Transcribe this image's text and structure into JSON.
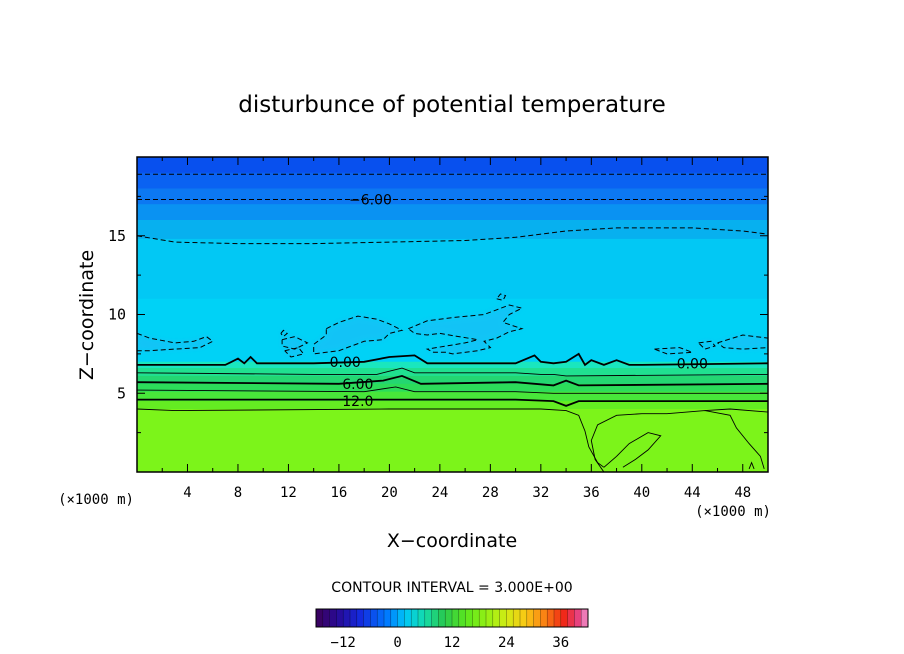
{
  "chart_data": {
    "type": "heatmap",
    "title": "disturbunce of potential temperature",
    "xlabel": "X−coordinate",
    "ylabel": "Z−coordinate",
    "x_unit_left": "(×1000 m)",
    "x_unit_right": "(×1000 m)",
    "xlim": [
      0,
      50
    ],
    "ylim": [
      0,
      20
    ],
    "x_ticks": [
      4,
      8,
      12,
      16,
      20,
      24,
      28,
      32,
      36,
      40,
      44,
      48
    ],
    "y_ticks": [
      5,
      10,
      15
    ],
    "contour_interval_text": "CONTOUR INTERVAL = 3.000E+00",
    "contour_labels": [
      {
        "text": "−6.00",
        "x": 18.5,
        "y": 17.3
      },
      {
        "text": "0.00",
        "x": 16.5,
        "y": 7.0
      },
      {
        "text": "0.00",
        "x": 44.0,
        "y": 6.9
      },
      {
        "text": "6.00",
        "x": 17.5,
        "y": 5.6
      },
      {
        "text": "12.0",
        "x": 17.5,
        "y": 4.5
      }
    ],
    "contour_levels": [
      {
        "value": -9,
        "style": "dashed",
        "points": [
          [
            0,
            18.9
          ],
          [
            50,
            18.9
          ]
        ]
      },
      {
        "value": -6,
        "style": "dashed",
        "points": [
          [
            0,
            17.3
          ],
          [
            50,
            17.3
          ]
        ]
      },
      {
        "value": -3,
        "style": "dashed",
        "points": [
          [
            0,
            15.0
          ],
          [
            3,
            14.6
          ],
          [
            8,
            14.5
          ],
          [
            14,
            14.5
          ],
          [
            20,
            14.6
          ],
          [
            26,
            14.7
          ],
          [
            30,
            14.9
          ],
          [
            34,
            15.3
          ],
          [
            38,
            15.5
          ],
          [
            44,
            15.5
          ],
          [
            48,
            15.3
          ],
          [
            50,
            15.1
          ]
        ]
      },
      {
        "value": 0,
        "style": "solid-thick",
        "points": [
          [
            0,
            6.8
          ],
          [
            7,
            6.8
          ],
          [
            7.5,
            7.0
          ],
          [
            8,
            7.2
          ],
          [
            8.5,
            6.9
          ],
          [
            9,
            7.3
          ],
          [
            9.5,
            6.9
          ],
          [
            14,
            6.9
          ],
          [
            18,
            7.0
          ],
          [
            20,
            7.3
          ],
          [
            22,
            7.4
          ],
          [
            23,
            6.9
          ],
          [
            30,
            6.9
          ],
          [
            31.5,
            7.4
          ],
          [
            32,
            7.0
          ],
          [
            33,
            6.9
          ],
          [
            34,
            7.0
          ],
          [
            35,
            7.5
          ],
          [
            35.5,
            6.8
          ],
          [
            36,
            7.1
          ],
          [
            37,
            6.8
          ],
          [
            38,
            7.1
          ],
          [
            39,
            6.8
          ],
          [
            40,
            6.8
          ],
          [
            50,
            6.9
          ]
        ]
      },
      {
        "value": 3,
        "style": "solid",
        "points": [
          [
            0,
            6.3
          ],
          [
            14,
            6.2
          ],
          [
            19,
            6.2
          ],
          [
            20,
            6.4
          ],
          [
            21,
            6.6
          ],
          [
            22,
            6.3
          ],
          [
            30,
            6.3
          ],
          [
            32,
            6.2
          ],
          [
            33,
            6.2
          ],
          [
            34,
            6.1
          ],
          [
            50,
            6.2
          ]
        ]
      },
      {
        "value": 6,
        "style": "solid-thick",
        "points": [
          [
            0,
            5.7
          ],
          [
            16,
            5.6
          ],
          [
            19.5,
            5.8
          ],
          [
            21,
            6.1
          ],
          [
            22.5,
            5.6
          ],
          [
            30,
            5.7
          ],
          [
            33,
            5.5
          ],
          [
            34,
            5.8
          ],
          [
            35,
            5.5
          ],
          [
            50,
            5.6
          ]
        ]
      },
      {
        "value": 9,
        "style": "solid",
        "points": [
          [
            0,
            5.2
          ],
          [
            18,
            5.1
          ],
          [
            20.5,
            5.4
          ],
          [
            22,
            5.1
          ],
          [
            30,
            5.1
          ],
          [
            33,
            5.0
          ],
          [
            50,
            5.0
          ]
        ]
      },
      {
        "value": 12,
        "style": "solid-thick",
        "points": [
          [
            0,
            4.6
          ],
          [
            30,
            4.6
          ],
          [
            33,
            4.5
          ],
          [
            34,
            4.2
          ],
          [
            35,
            4.5
          ],
          [
            50,
            4.5
          ]
        ]
      },
      {
        "value": 15,
        "style": "solid",
        "points": [
          [
            0,
            4.0
          ],
          [
            3,
            3.9
          ],
          [
            20,
            4.0
          ],
          [
            32,
            4.0
          ],
          [
            34,
            3.9
          ],
          [
            35,
            3.6
          ],
          [
            35.5,
            2.6
          ],
          [
            35.8,
            1.6
          ],
          [
            36.5,
            0.6
          ],
          [
            37,
            0.3
          ]
        ]
      },
      {
        "value": 15,
        "style": "solid",
        "points": [
          [
            37,
            0.0
          ],
          [
            36.3,
            0.8
          ],
          [
            36.0,
            2.0
          ],
          [
            36.5,
            3.0
          ],
          [
            38,
            3.6
          ],
          [
            40,
            3.7
          ],
          [
            42,
            3.7
          ],
          [
            45,
            3.9
          ],
          [
            47,
            3.6
          ],
          [
            47.5,
            2.8
          ],
          [
            48.5,
            1.8
          ],
          [
            49.4,
            1.0
          ],
          [
            49.7,
            0.2
          ]
        ]
      },
      {
        "value": 15,
        "style": "solid",
        "points": [
          [
            37,
            0.3
          ],
          [
            38,
            1.0
          ],
          [
            39,
            1.8
          ],
          [
            40.5,
            2.5
          ],
          [
            41.5,
            2.3
          ],
          [
            40.5,
            1.4
          ],
          [
            39.5,
            0.8
          ],
          [
            38.5,
            0.3
          ]
        ]
      },
      {
        "value": 15,
        "style": "solid",
        "points": [
          [
            45,
            3.9
          ],
          [
            47,
            4.0
          ],
          [
            50,
            3.8
          ]
        ]
      },
      {
        "value": 15,
        "style": "solid",
        "points": [
          [
            48.5,
            0.2
          ],
          [
            48.7,
            0.6
          ],
          [
            48.9,
            0.2
          ]
        ]
      }
    ],
    "cold_anomaly_contours": [
      {
        "value": -3,
        "style": "dashed",
        "points": [
          [
            0,
            8.8
          ],
          [
            1,
            8.5
          ],
          [
            3,
            8.2
          ],
          [
            4.5,
            8.3
          ],
          [
            5.5,
            8.6
          ],
          [
            6,
            8.3
          ],
          [
            5,
            7.9
          ],
          [
            3,
            7.8
          ],
          [
            1,
            7.7
          ],
          [
            0,
            7.7
          ]
        ]
      },
      {
        "value": -3,
        "style": "dashed",
        "points": [
          [
            11.5,
            8.4
          ],
          [
            12.5,
            8.6
          ],
          [
            13.5,
            8.2
          ],
          [
            12.5,
            7.8
          ],
          [
            11.5,
            8.0
          ],
          [
            11.5,
            8.4
          ]
        ]
      },
      {
        "value": -3,
        "style": "dashed",
        "points": [
          [
            11.7,
            7.7
          ],
          [
            12.8,
            7.9
          ],
          [
            13.2,
            7.5
          ],
          [
            12.2,
            7.3
          ],
          [
            11.7,
            7.7
          ]
        ]
      },
      {
        "value": -3,
        "style": "dashed",
        "points": [
          [
            11.4,
            8.8
          ],
          [
            11.6,
            9.0
          ],
          [
            11.9,
            8.8
          ],
          [
            11.6,
            8.6
          ],
          [
            11.4,
            8.8
          ]
        ]
      },
      {
        "value": -3,
        "style": "dashed",
        "points": [
          [
            15,
            9.1
          ],
          [
            16,
            9.5
          ],
          [
            17.5,
            9.9
          ],
          [
            19,
            9.7
          ],
          [
            20,
            9.4
          ],
          [
            21,
            9.0
          ],
          [
            20,
            8.8
          ],
          [
            19.5,
            8.4
          ],
          [
            18,
            8.3
          ],
          [
            17,
            8.0
          ],
          [
            16,
            7.7
          ],
          [
            15,
            7.6
          ],
          [
            14,
            7.5
          ],
          [
            14,
            8.1
          ],
          [
            15,
            8.7
          ],
          [
            15,
            9.1
          ]
        ]
      },
      {
        "value": -3,
        "style": "dashed",
        "points": [
          [
            21.5,
            9.1
          ],
          [
            23,
            9.6
          ],
          [
            25,
            9.8
          ],
          [
            27.5,
            10.0
          ],
          [
            28.5,
            10.3
          ],
          [
            29.5,
            10.6
          ],
          [
            30.5,
            10.4
          ],
          [
            29.5,
            10.0
          ],
          [
            29,
            9.5
          ],
          [
            30.5,
            9.1
          ],
          [
            29.5,
            8.9
          ],
          [
            28.5,
            8.5
          ],
          [
            27.5,
            8.3
          ],
          [
            28,
            7.9
          ],
          [
            27,
            7.7
          ],
          [
            25,
            7.5
          ],
          [
            24.5,
            7.6
          ],
          [
            23.5,
            7.6
          ],
          [
            23,
            7.8
          ],
          [
            24.5,
            8.0
          ],
          [
            26,
            8.2
          ],
          [
            27,
            8.4
          ],
          [
            25.5,
            8.6
          ],
          [
            24,
            8.8
          ],
          [
            23,
            8.7
          ],
          [
            22,
            8.8
          ],
          [
            21.5,
            9.1
          ]
        ]
      },
      {
        "value": -3,
        "style": "dashed",
        "points": [
          [
            28.5,
            11.0
          ],
          [
            29,
            10.9
          ],
          [
            29.2,
            11.2
          ],
          [
            28.8,
            11.3
          ],
          [
            28.5,
            11.0
          ]
        ]
      },
      {
        "value": -3,
        "style": "dashed",
        "points": [
          [
            46,
            8.2
          ],
          [
            48,
            8.7
          ],
          [
            49,
            8.6
          ],
          [
            50,
            8.5
          ],
          [
            50,
            7.9
          ],
          [
            48,
            7.8
          ],
          [
            46.5,
            7.9
          ],
          [
            46,
            8.2
          ]
        ]
      },
      {
        "value": -3,
        "style": "dashed",
        "points": [
          [
            44.5,
            8.2
          ],
          [
            45.5,
            8.3
          ],
          [
            45.8,
            8.0
          ],
          [
            45,
            7.8
          ],
          [
            44.5,
            8.2
          ]
        ]
      },
      {
        "value": -3,
        "style": "dashed",
        "points": [
          [
            41,
            7.8
          ],
          [
            43,
            7.9
          ],
          [
            44,
            7.6
          ],
          [
            42,
            7.5
          ],
          [
            41,
            7.8
          ]
        ]
      }
    ],
    "colorbar": {
      "min": -18,
      "max": 42,
      "step": 1.5,
      "tick_values": [
        -12,
        0,
        12,
        24,
        36
      ],
      "tick_labels": [
        "−12",
        "0",
        "12",
        "24",
        "36"
      ]
    },
    "field_color_bands": [
      {
        "z0": 19.0,
        "z1": 20.0,
        "color": "#0850ee"
      },
      {
        "z0": 18.0,
        "z1": 19.0,
        "color": "#0a62f2"
      },
      {
        "z0": 17.0,
        "z1": 18.0,
        "color": "#0c78f2"
      },
      {
        "z0": 16.0,
        "z1": 17.0,
        "color": "#0a92f2"
      },
      {
        "z0": 14.8,
        "z1": 16.0,
        "color": "#07b0ef"
      },
      {
        "z0": 11.0,
        "z1": 14.8,
        "color": "#02c8f4"
      },
      {
        "z0": 7.0,
        "z1": 11.0,
        "color": "#00d2f6"
      },
      {
        "z0": 6.6,
        "z1": 7.0,
        "color": "#1ae6be"
      },
      {
        "z0": 6.1,
        "z1": 6.6,
        "color": "#20e090"
      },
      {
        "z0": 5.6,
        "z1": 6.1,
        "color": "#24d672"
      },
      {
        "z0": 5.1,
        "z1": 5.6,
        "color": "#2cdc5a"
      },
      {
        "z0": 4.5,
        "z1": 5.1,
        "color": "#48e63a"
      },
      {
        "z0": 4.0,
        "z1": 4.5,
        "color": "#64ec22"
      },
      {
        "z0": 0.0,
        "z1": 4.0,
        "color": "#7cf41a"
      }
    ]
  }
}
